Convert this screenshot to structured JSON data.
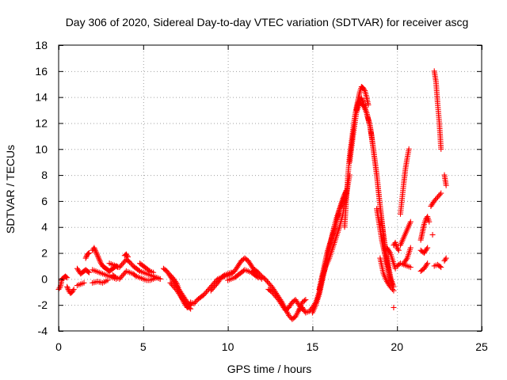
{
  "chart_data": {
    "type": "scatter",
    "title": "Day 306 of 2020, Sidereal Day-to-day VTEC variation (SDTVAR) for receiver ascg",
    "xlabel": "GPS time / hours",
    "ylabel": "SDTVAR / TECUs",
    "xlim": [
      0,
      25
    ],
    "ylim": [
      -4,
      18
    ],
    "xticks": [
      0,
      5,
      10,
      15,
      20,
      25
    ],
    "yticks": [
      -4,
      -2,
      0,
      2,
      4,
      6,
      8,
      10,
      12,
      14,
      16,
      18
    ],
    "grid": true,
    "marker": "+",
    "series": [
      {
        "name": "SDTVAR",
        "color": "#ff0000",
        "segments": [
          {
            "x": [
              0.0,
              0.1,
              0.2,
              0.3,
              0.4,
              0.5
            ],
            "y": [
              -0.8,
              -0.6,
              0.0,
              0.1,
              0.2,
              0.1
            ]
          },
          {
            "x": [
              0.5,
              0.6,
              0.7,
              0.8,
              0.9
            ],
            "y": [
              -0.6,
              -0.9,
              -1.1,
              -1.0,
              -0.8
            ]
          },
          {
            "x": [
              1.1,
              1.2,
              1.3,
              1.4,
              1.5,
              1.6,
              1.7,
              1.8
            ],
            "y": [
              0.8,
              0.6,
              0.4,
              0.5,
              0.6,
              0.7,
              0.6,
              0.5
            ]
          },
          {
            "x": [
              1.1,
              1.3,
              1.5
            ],
            "y": [
              -0.5,
              -0.4,
              -0.3
            ]
          },
          {
            "x": [
              1.6,
              1.7,
              1.8
            ],
            "y": [
              1.6,
              1.9,
              2.0
            ]
          },
          {
            "x": [
              2.0,
              2.1,
              2.2,
              2.3,
              2.4,
              2.5,
              2.6,
              2.7,
              2.8,
              2.9,
              3.0,
              3.1,
              3.2,
              3.3,
              3.4,
              3.5
            ],
            "y": [
              2.2,
              2.4,
              2.1,
              1.8,
              1.5,
              1.2,
              1.0,
              0.9,
              0.8,
              0.7,
              0.6,
              0.7,
              0.8,
              0.9,
              1.0,
              0.9
            ]
          },
          {
            "x": [
              2.0,
              2.2,
              2.4,
              2.6,
              2.8,
              3.0,
              3.2,
              3.4
            ],
            "y": [
              0.7,
              0.6,
              0.5,
              0.4,
              0.3,
              0.2,
              0.1,
              0.0
            ]
          },
          {
            "x": [
              2.0,
              2.3,
              2.6,
              2.9
            ],
            "y": [
              -0.3,
              -0.2,
              -0.3,
              -0.1
            ]
          },
          {
            "x": [
              3.0,
              3.2,
              3.4,
              3.6,
              3.8,
              4.0,
              4.2,
              4.4,
              4.6,
              4.8,
              5.0,
              5.2,
              5.4,
              5.6,
              5.8,
              6.0
            ],
            "y": [
              1.2,
              1.1,
              1.0,
              0.9,
              1.2,
              1.5,
              1.3,
              1.0,
              0.8,
              0.6,
              0.5,
              0.4,
              0.3,
              0.2,
              0.1,
              0.0
            ]
          },
          {
            "x": [
              3.2,
              3.4,
              3.6,
              3.8,
              4.0,
              4.2,
              4.4,
              4.6,
              4.8,
              5.0,
              5.2,
              5.4,
              5.6,
              5.8,
              6.0
            ],
            "y": [
              0.3,
              0.1,
              0.0,
              0.3,
              0.6,
              0.5,
              0.4,
              0.2,
              0.1,
              0.0,
              -0.1,
              -0.1,
              0.0,
              0.1,
              0.0
            ]
          },
          {
            "x": [
              3.9,
              4.0,
              4.1
            ],
            "y": [
              1.8,
              1.9,
              1.7
            ]
          },
          {
            "x": [
              4.8,
              5.0,
              5.2,
              5.4,
              5.6
            ],
            "y": [
              1.2,
              1.0,
              0.8,
              0.6,
              0.5
            ]
          },
          {
            "x": [
              6.2,
              6.4,
              6.6,
              6.8,
              7.0,
              7.2,
              7.4,
              7.6,
              7.8
            ],
            "y": [
              0.8,
              0.6,
              0.2,
              -0.2,
              -0.6,
              -1.0,
              -1.4,
              -1.8,
              -2.0
            ]
          },
          {
            "x": [
              6.6,
              6.8,
              7.0,
              7.2,
              7.4,
              7.6,
              7.8
            ],
            "y": [
              0.3,
              0.0,
              -0.4,
              -1.2,
              -1.8,
              -2.2,
              -2.0
            ]
          },
          {
            "x": [
              6.6,
              6.8,
              7.0,
              7.2,
              7.4,
              7.6,
              7.8
            ],
            "y": [
              -0.3,
              -0.6,
              -0.9,
              -1.3,
              -1.7,
              -2.1,
              -2.3
            ]
          },
          {
            "x": [
              7.8,
              8.0,
              8.2,
              8.4,
              8.6,
              8.8,
              9.0,
              9.2,
              9.4,
              9.6,
              9.8,
              10.0,
              10.2
            ],
            "y": [
              -1.8,
              -1.9,
              -1.6,
              -1.4,
              -1.2,
              -0.9,
              -0.6,
              -0.3,
              0.0,
              0.1,
              0.2,
              0.3,
              0.4
            ]
          },
          {
            "x": [
              9.0,
              9.2,
              9.4,
              9.6,
              9.8,
              10.0,
              10.2
            ],
            "y": [
              -0.9,
              -0.6,
              -0.3,
              0.1,
              0.3,
              0.4,
              0.5
            ]
          },
          {
            "x": [
              9.8,
              10.0,
              10.2,
              10.4,
              10.6,
              10.8,
              11.0,
              11.2,
              11.4,
              11.6,
              11.8,
              12.0
            ],
            "y": [
              0.2,
              0.3,
              0.4,
              0.6,
              1.0,
              1.4,
              1.6,
              1.4,
              1.0,
              0.6,
              0.3,
              0.0
            ]
          },
          {
            "x": [
              10.0,
              10.2,
              10.4,
              10.6,
              10.8,
              11.0,
              11.2,
              11.4,
              11.6,
              11.8
            ],
            "y": [
              -0.1,
              0.0,
              0.1,
              0.3,
              0.5,
              0.7,
              0.6,
              0.5,
              0.3,
              0.1
            ]
          },
          {
            "x": [
              11.5,
              11.6,
              11.8,
              12.0,
              12.2,
              12.4,
              12.6,
              12.8,
              13.0,
              13.2,
              13.4,
              13.6,
              13.8,
              14.0,
              14.2,
              14.4,
              14.6
            ],
            "y": [
              0.6,
              0.7,
              0.5,
              0.2,
              0.0,
              -0.3,
              -0.6,
              -1.0,
              -1.4,
              -1.8,
              -2.3,
              -2.8,
              -3.1,
              -2.9,
              -2.4,
              -1.8,
              -1.6
            ]
          },
          {
            "x": [
              12.4,
              12.6,
              12.8,
              13.0,
              13.2,
              13.4,
              13.6,
              13.8,
              14.0,
              14.2,
              14.4
            ],
            "y": [
              -0.8,
              -1.0,
              -1.3,
              -1.6,
              -2.0,
              -2.4,
              -2.2,
              -1.8,
              -1.6,
              -2.0,
              -2.3
            ]
          },
          {
            "x": [
              14.2,
              14.4,
              14.6,
              14.8,
              15.0,
              15.2,
              15.4,
              15.6,
              15.8,
              16.0,
              16.2,
              16.4,
              16.6,
              16.8,
              17.0,
              17.2
            ],
            "y": [
              -2.4,
              -2.2,
              -2.6,
              -2.5,
              -2.2,
              -1.8,
              -1.0,
              0.2,
              1.0,
              1.6,
              2.4,
              3.2,
              4.0,
              5.0,
              6.5,
              8.0
            ]
          },
          {
            "x": [
              15.0,
              15.2,
              15.4,
              15.6,
              15.8,
              16.0,
              16.2,
              16.4,
              16.6,
              16.8,
              17.0
            ],
            "y": [
              -2.6,
              -2.0,
              -1.2,
              0.0,
              1.2,
              2.4,
              3.6,
              4.6,
              5.4,
              6.0,
              6.8
            ]
          },
          {
            "x": [
              15.4,
              15.5,
              15.6,
              15.7,
              15.8,
              15.9,
              16.0,
              16.1,
              16.2,
              16.3,
              16.4,
              16.5,
              16.6,
              16.7,
              16.8,
              16.9,
              17.0
            ],
            "y": [
              -0.8,
              -0.2,
              0.4,
              1.0,
              1.6,
              2.2,
              2.6,
              3.0,
              3.4,
              3.8,
              4.3,
              4.8,
              5.3,
              5.8,
              6.2,
              6.5,
              6.8
            ]
          },
          {
            "x": [
              16.9,
              17.0,
              17.1,
              17.2,
              17.3,
              17.4,
              17.5,
              17.6,
              17.7,
              17.8,
              17.9,
              18.0,
              18.1,
              18.2,
              18.3
            ],
            "y": [
              4.0,
              6.0,
              8.0,
              9.5,
              10.5,
              11.5,
              12.5,
              13.2,
              13.8,
              14.4,
              14.8,
              14.7,
              14.5,
              14.0,
              13.4
            ]
          },
          {
            "x": [
              17.2,
              17.4,
              17.6,
              17.8,
              18.0,
              18.2,
              18.4,
              18.6,
              18.8,
              19.0,
              19.2,
              19.4,
              19.6
            ],
            "y": [
              9.0,
              11.0,
              12.8,
              13.6,
              13.4,
              12.8,
              11.8,
              10.0,
              8.0,
              5.6,
              3.4,
              1.6,
              0.2
            ]
          },
          {
            "x": [
              17.6,
              17.7,
              17.8,
              17.9,
              18.0,
              18.1,
              18.2,
              18.3,
              18.4,
              18.5,
              18.6,
              18.7,
              18.8,
              18.9,
              19.0,
              19.1,
              19.2,
              19.3,
              19.4,
              19.5,
              19.6,
              19.7,
              19.8
            ],
            "y": [
              13.0,
              13.5,
              13.8,
              13.9,
              13.6,
              13.2,
              12.8,
              12.3,
              11.8,
              11.0,
              10.0,
              9.0,
              8.0,
              6.8,
              5.6,
              4.4,
              3.2,
              2.2,
              1.4,
              0.7,
              0.2,
              -0.2,
              -0.6
            ]
          },
          {
            "x": [
              18.8,
              18.9,
              19.0,
              19.1,
              19.2,
              19.3,
              19.4,
              19.5,
              19.6,
              19.7
            ],
            "y": [
              5.4,
              4.6,
              3.8,
              3.0,
              2.4,
              1.8,
              1.2,
              0.6,
              0.0,
              -0.4
            ]
          },
          {
            "x": [
              19.0,
              19.2,
              19.4,
              19.6,
              19.8
            ],
            "y": [
              1.6,
              0.4,
              -0.2,
              -0.6,
              -0.9
            ]
          },
          {
            "x": [
              19.4,
              19.5,
              19.6,
              19.7,
              19.8,
              19.9
            ],
            "y": [
              2.4,
              2.2,
              2.0,
              1.6,
              1.2,
              0.8
            ]
          },
          {
            "x": [
              19.8
            ],
            "y": [
              -2.2
            ]
          },
          {
            "x": [
              19.8,
              19.9,
              20.0,
              20.1
            ],
            "y": [
              2.6,
              2.8,
              2.4,
              2.2
            ]
          },
          {
            "x": [
              20.0,
              20.2,
              20.4,
              20.6,
              20.8
            ],
            "y": [
              1.0,
              1.2,
              1.1,
              1.0,
              0.9
            ]
          },
          {
            "x": [
              20.2,
              20.3,
              20.4,
              20.5,
              20.6,
              20.7
            ],
            "y": [
              5.0,
              6.2,
              7.4,
              8.5,
              9.3,
              10.0
            ]
          },
          {
            "x": [
              20.2,
              20.4,
              20.6,
              20.8
            ],
            "y": [
              2.6,
              3.2,
              3.8,
              4.4
            ]
          },
          {
            "x": [
              20.4,
              20.6,
              20.8
            ],
            "y": [
              1.2,
              1.6,
              2.4
            ]
          },
          {
            "x": [
              21.4,
              21.5,
              21.6,
              21.7,
              21.8,
              21.9
            ],
            "y": [
              3.0,
              3.6,
              4.2,
              4.6,
              4.8,
              4.4
            ]
          },
          {
            "x": [
              21.4,
              21.6,
              21.8
            ],
            "y": [
              0.6,
              0.8,
              1.2
            ]
          },
          {
            "x": [
              21.4,
              21.6,
              21.8
            ],
            "y": [
              2.2,
              2.0,
              2.4
            ]
          },
          {
            "x": [
              22.1
            ],
            "y": [
              3.4
            ]
          },
          {
            "x": [
              22.0,
              22.2,
              22.4,
              22.6
            ],
            "y": [
              5.6,
              6.0,
              6.3,
              6.6
            ]
          },
          {
            "x": [
              22.2,
              22.3,
              22.4,
              22.5,
              22.6
            ],
            "y": [
              16.0,
              15.2,
              13.5,
              12.0,
              10.0
            ]
          },
          {
            "x": [
              22.2,
              22.4,
              22.6
            ],
            "y": [
              1.0,
              1.1,
              0.9
            ]
          },
          {
            "x": [
              22.8,
              22.9
            ],
            "y": [
              8.0,
              7.2
            ]
          },
          {
            "x": [
              22.8,
              22.9
            ],
            "y": [
              1.4,
              1.6
            ]
          }
        ]
      }
    ]
  }
}
